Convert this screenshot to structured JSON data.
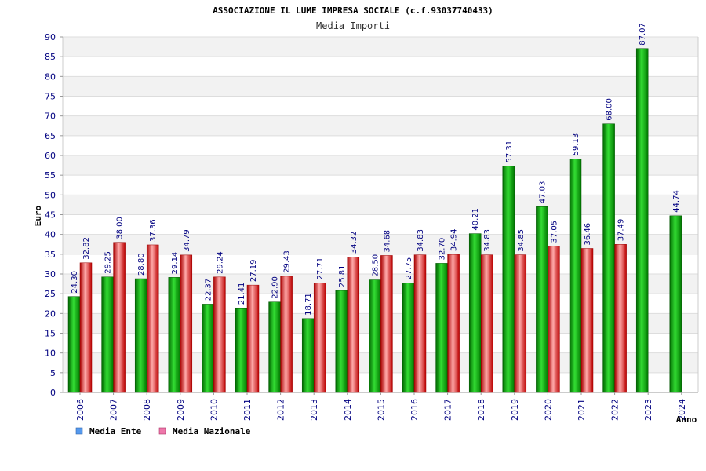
{
  "chart_data": {
    "type": "bar",
    "title": "ASSOCIAZIONE IL LUME IMPRESA SOCIALE (c.f.93037740433)",
    "subtitle": "Media Importi",
    "ylabel": "Euro",
    "xlabel": "Anno",
    "ylim": [
      0,
      90
    ],
    "ytick_step": 5,
    "categories": [
      "2006",
      "2007",
      "2008",
      "2009",
      "2010",
      "2011",
      "2012",
      "2013",
      "2014",
      "2015",
      "2016",
      "2017",
      "2018",
      "2019",
      "2020",
      "2021",
      "2022",
      "2023",
      "2024"
    ],
    "series": [
      {
        "name": "Media Ente",
        "color": "#00aa00",
        "values": [
          24.3,
          29.25,
          28.8,
          29.14,
          22.37,
          21.41,
          22.9,
          18.71,
          25.81,
          28.5,
          27.75,
          32.7,
          40.21,
          57.31,
          47.03,
          59.13,
          68.0,
          87.07,
          44.74
        ],
        "labels": [
          "24.30",
          "29.25",
          "28.80",
          "29.14",
          "22.37",
          "21.41",
          "22.90",
          "18.71",
          "25.81",
          "28.50",
          "27.75",
          "32.70",
          "40.21",
          "57.31",
          "47.03",
          "59.13",
          "68.00",
          "87.07",
          "44.74"
        ]
      },
      {
        "name": "Media Nazionale",
        "color": "#dd2222",
        "values": [
          32.82,
          38.0,
          37.36,
          34.79,
          29.24,
          27.19,
          29.43,
          27.71,
          34.32,
          34.68,
          34.83,
          34.94,
          34.83,
          34.85,
          37.05,
          36.46,
          37.49,
          null,
          null
        ],
        "labels": [
          "32.82",
          "38.00",
          "37.36",
          "34.79",
          "29.24",
          "27.19",
          "29.43",
          "27.71",
          "34.32",
          "34.68",
          "34.83",
          "34.94",
          "34.83",
          "34.85",
          "37.05",
          "36.46",
          "37.49",
          null,
          null
        ]
      }
    ],
    "legend": {
      "placement": "bottom-left",
      "items": [
        {
          "label": "Media Ente",
          "swatch_color": "#5599ee"
        },
        {
          "label": "Media Nazionale",
          "swatch_color": "#ee77aa"
        }
      ]
    },
    "grid": true
  }
}
